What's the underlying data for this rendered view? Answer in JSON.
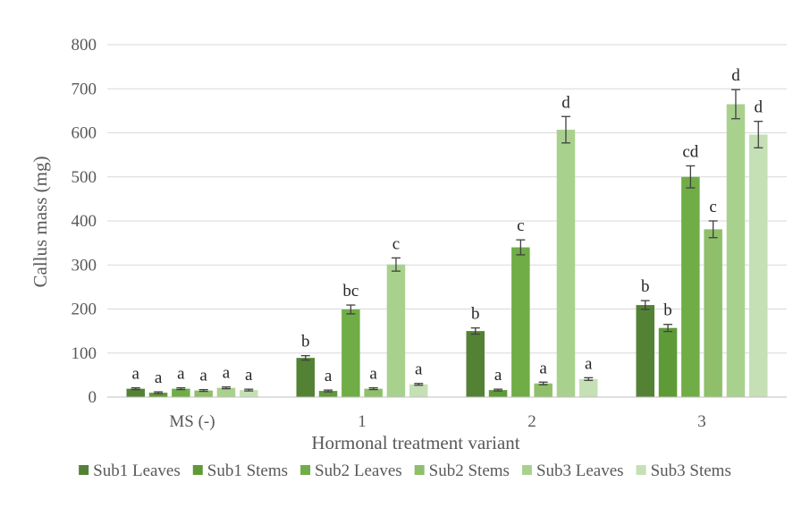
{
  "chart_data": {
    "type": "bar",
    "xlabel": "Hormonal treatment variant",
    "ylabel": "Callus mass (mg)",
    "ylim": [
      0,
      800
    ],
    "yticks": [
      0,
      100,
      200,
      300,
      400,
      500,
      600,
      700,
      800
    ],
    "grid": true,
    "legend_position": "bottom",
    "categories": [
      "MS (-)",
      "1",
      "2",
      "3"
    ],
    "series": [
      {
        "name": "Sub1 Leaves",
        "color": "#548235",
        "values": [
          19,
          89,
          150,
          209
        ],
        "errors": [
          2,
          5,
          7,
          10
        ],
        "labels": [
          "a",
          "b",
          "b",
          "b"
        ]
      },
      {
        "name": "Sub1 Stems",
        "color": "#5f9a38",
        "values": [
          10,
          14,
          16,
          157
        ],
        "errors": [
          2,
          2,
          2,
          8
        ],
        "labels": [
          "a",
          "a",
          "a",
          "b"
        ]
      },
      {
        "name": "Sub2 Leaves",
        "color": "#70ad47",
        "values": [
          19,
          199,
          340,
          500
        ],
        "errors": [
          2,
          10,
          17,
          25
        ],
        "labels": [
          "a",
          "bc",
          "c",
          "cd"
        ]
      },
      {
        "name": "Sub2 Stems",
        "color": "#8fbf6a",
        "values": [
          15,
          19,
          31,
          381
        ],
        "errors": [
          2,
          2,
          3,
          19
        ],
        "labels": [
          "a",
          "a",
          "a",
          "c"
        ]
      },
      {
        "name": "Sub3 Leaves",
        "color": "#a9d18e",
        "values": [
          21,
          301,
          607,
          665
        ],
        "errors": [
          2,
          15,
          30,
          33
        ],
        "labels": [
          "a",
          "c",
          "d",
          "d"
        ]
      },
      {
        "name": "Sub3 Stems",
        "color": "#c5e0b4",
        "values": [
          16,
          29,
          41,
          596
        ],
        "errors": [
          2,
          2,
          3,
          30
        ],
        "labels": [
          "a",
          "a",
          "a",
          "d"
        ]
      }
    ]
  }
}
